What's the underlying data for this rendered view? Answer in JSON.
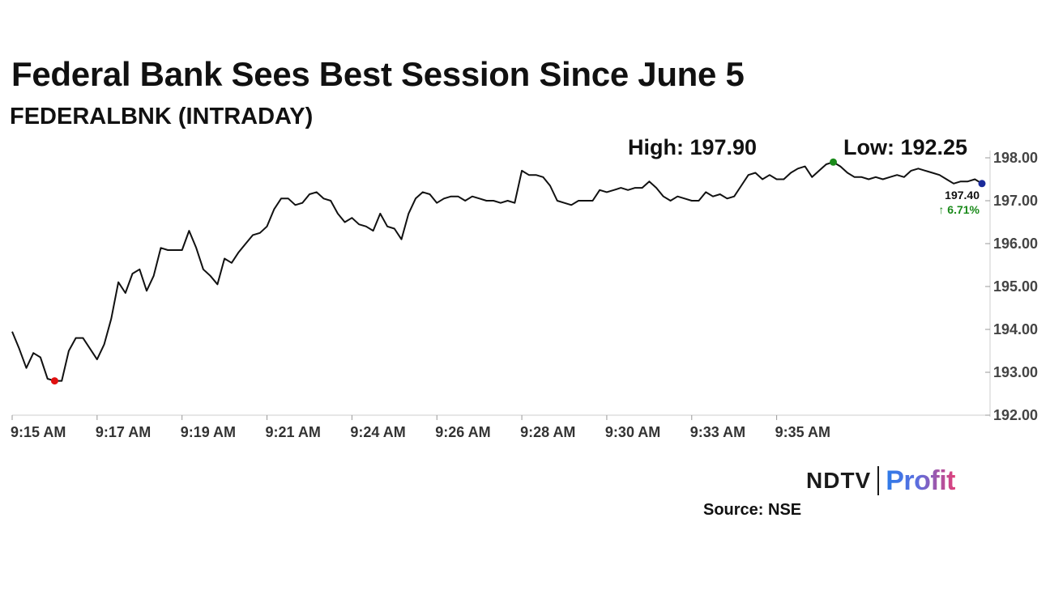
{
  "header": {
    "title": "Federal Bank Sees Best Session Since June 5",
    "subtitle": "FEDERALBNK (INTRADAY)",
    "high_label": "High: 197.90",
    "low_label": "Low: 192.25"
  },
  "last": {
    "value": "197.40",
    "change": "6.71%",
    "change_arrow": "↑"
  },
  "footer": {
    "logo_left": "NDTV",
    "logo_right": "Profit",
    "source": "Source: NSE"
  },
  "colors": {
    "line": "#111111",
    "high_marker": "#1a8a1a",
    "low_marker": "#e01010",
    "last_marker": "#1a2a9a",
    "change_up": "#1a8a1a"
  },
  "chart_data": {
    "type": "line",
    "title": "Federal Bank Sees Best Session Since June 5",
    "subtitle": "FEDERALBNK (INTRADAY)",
    "xlabel": "",
    "ylabel": "",
    "ylim": [
      192.0,
      198.0
    ],
    "yticks": [
      192.0,
      193.0,
      194.0,
      195.0,
      196.0,
      197.0,
      198.0
    ],
    "ytick_labels": [
      "192.00",
      "193.00",
      "194.00",
      "195.00",
      "196.00",
      "197.00",
      "198.00"
    ],
    "xtick_labels": [
      "9:15 AM",
      "9:17 AM",
      "9:19 AM",
      "9:21 AM",
      "9:24 AM",
      "9:26 AM",
      "9:28 AM",
      "9:30 AM",
      "9:33 AM",
      "9:35 AM"
    ],
    "grid": false,
    "series": [
      {
        "values": [
          193.95,
          193.55,
          193.1,
          193.45,
          193.35,
          192.85,
          192.8,
          192.8,
          193.5,
          193.8,
          193.8,
          193.55,
          193.3,
          193.65,
          194.25,
          195.1,
          194.85,
          195.3,
          195.4,
          194.9,
          195.25,
          195.9,
          195.85,
          195.85,
          195.85,
          196.3,
          195.9,
          195.4,
          195.25,
          195.05,
          195.65,
          195.55,
          195.8,
          196.0,
          196.2,
          196.25,
          196.4,
          196.8,
          197.05,
          197.05,
          196.9,
          196.95,
          197.15,
          197.2,
          197.05,
          197.0,
          196.7,
          196.5,
          196.6,
          196.45,
          196.4,
          196.3,
          196.7,
          196.4,
          196.35,
          196.1,
          196.7,
          197.05,
          197.2,
          197.15,
          196.95,
          197.05,
          197.1,
          197.1,
          197.0,
          197.1,
          197.05,
          197.0,
          197.0,
          196.95,
          197.0,
          196.95,
          197.7,
          197.6,
          197.6,
          197.55,
          197.35,
          197.0,
          196.95,
          196.9,
          197.0,
          197.0,
          197.0,
          197.25,
          197.2,
          197.25,
          197.3,
          197.25,
          197.3,
          197.3,
          197.45,
          197.3,
          197.1,
          197.0,
          197.1,
          197.05,
          197.0,
          197.0,
          197.2,
          197.1,
          197.15,
          197.05,
          197.1,
          197.35,
          197.6,
          197.65,
          197.5,
          197.6,
          197.5,
          197.5,
          197.65,
          197.75,
          197.8,
          197.55,
          197.7,
          197.85,
          197.9,
          197.8,
          197.65,
          197.55,
          197.55,
          197.5,
          197.55,
          197.5,
          197.55,
          197.6,
          197.55,
          197.7,
          197.75,
          197.7,
          197.65,
          197.6,
          197.5,
          197.4,
          197.45,
          197.45,
          197.5,
          197.4
        ]
      }
    ],
    "annotations": {
      "high": 197.9,
      "low": 192.8,
      "last": 197.4,
      "last_change_pct": "6.71%"
    }
  }
}
